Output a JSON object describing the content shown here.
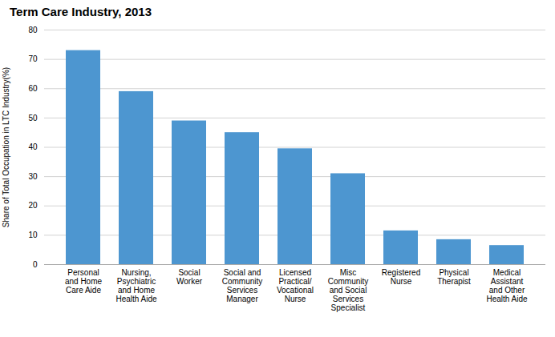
{
  "chart_data": {
    "type": "bar",
    "title": "Term Care Industry, 2013",
    "categories": [
      "Personal\nand Home\nCare Aide",
      "Nursing,\nPsychiatric\nand Home\nHealth Aide",
      "Social\nWorker",
      "Social and\nCommunity\nServices\nManager",
      "Licensed\nPractical/\nVocational\nNurse",
      "Misc\nCommunity\nand Social\nServices\nSpecialist",
      "Registered\nNurse",
      "Physical\nTherapist",
      "Medical\nAssistant\nand Other\nHealth Aide"
    ],
    "values": [
      73,
      59,
      49,
      45,
      39.5,
      31,
      11.5,
      8.5,
      6.5
    ],
    "color": "#4d96d0",
    "ylabel": "Share of Total Occupation in LTC Industry(%)",
    "ylim": [
      0,
      80
    ],
    "yticks": [
      0,
      10,
      20,
      30,
      40,
      50,
      60,
      70,
      80
    ],
    "grid": true
  }
}
